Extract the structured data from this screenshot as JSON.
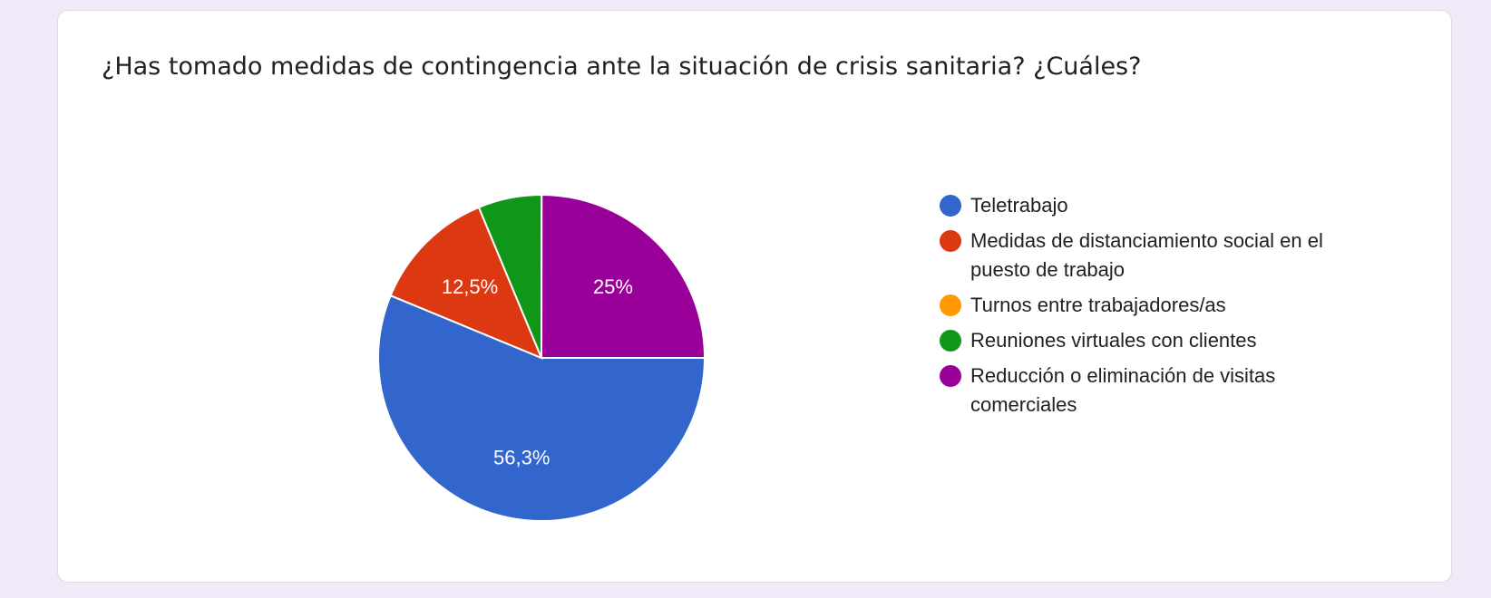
{
  "question": {
    "title": "¿Has tomado medidas de contingencia ante la situación de crisis sanitaria? ¿Cuáles?"
  },
  "chart_data": {
    "type": "pie",
    "title": "¿Has tomado medidas de contingencia ante la situación de crisis sanitaria? ¿Cuáles?",
    "legend_position": "right",
    "slices": [
      {
        "label": "Teletrabajo",
        "value": 56.3,
        "color": "#3366cc",
        "data_label": "56,3%"
      },
      {
        "label": "Medidas de distanciamiento social en el puesto de trabajo",
        "value": 12.5,
        "color": "#dc3912",
        "data_label": "12,5%"
      },
      {
        "label": "Turnos entre trabajadores/as",
        "value": 0,
        "color": "#ff9900",
        "data_label": ""
      },
      {
        "label": "Reuniones virtuales con clientes",
        "value": 6.3,
        "color": "#109618",
        "data_label": ""
      },
      {
        "label": "Reducción o eliminación de visitas comerciales",
        "value": 25,
        "color": "#990099",
        "data_label": "25%"
      }
    ]
  }
}
